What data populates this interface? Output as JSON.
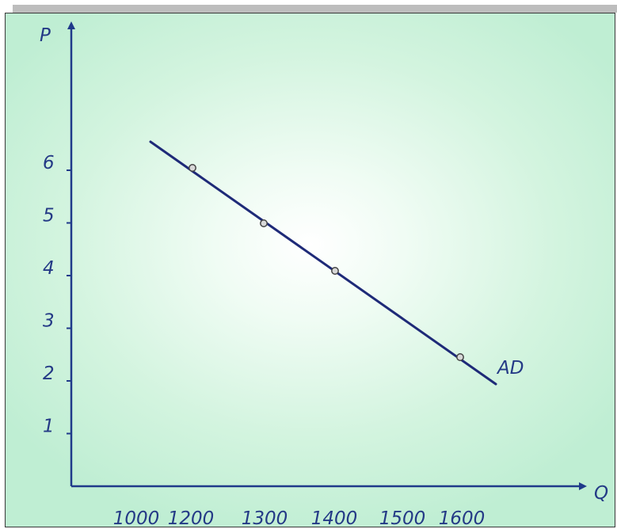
{
  "chart_data": {
    "type": "line",
    "xlabel": "Q",
    "ylabel": "P",
    "x_ticks": [
      "1000",
      "1200",
      "1300",
      "1400",
      "1500",
      "1600"
    ],
    "y_ticks": [
      "1",
      "2",
      "3",
      "4",
      "5",
      "6"
    ],
    "series": [
      {
        "name": "AD",
        "line": [
          [
            1010,
            6.6
          ],
          [
            1650,
            2.0
          ]
        ],
        "points": [
          [
            1190,
            6.1
          ],
          [
            1290,
            5.0
          ],
          [
            1410,
            4.1
          ],
          [
            1590,
            2.5
          ]
        ]
      }
    ],
    "colors": {
      "axis": "#1f3a8a",
      "line": "#1e2a78",
      "text": "#243a86",
      "point_fill": "#d8d8d8",
      "point_stroke": "#444444"
    }
  }
}
